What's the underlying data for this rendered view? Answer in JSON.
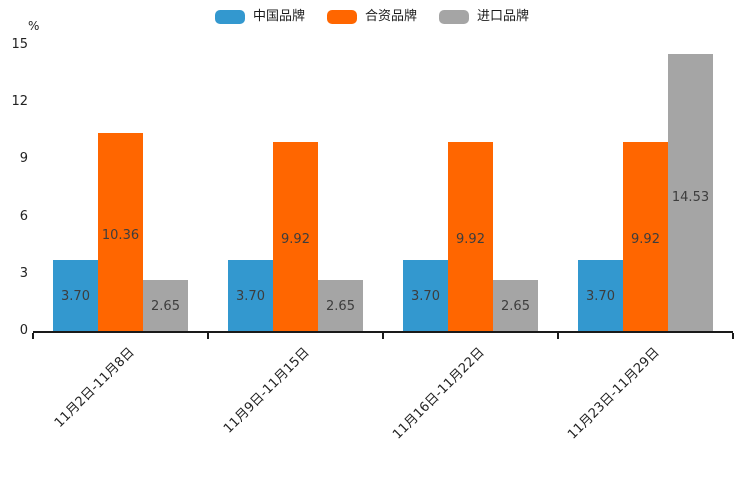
{
  "chart_data": {
    "type": "bar",
    "unit_label": "%",
    "categories": [
      "11月2日-11月8日",
      "11月9日-11月15日",
      "11月16日-11月22日",
      "11月23日-11月29日"
    ],
    "series": [
      {
        "name": "中国品牌",
        "color": "#3398CF",
        "values": [
          3.7,
          3.7,
          3.7,
          3.7
        ]
      },
      {
        "name": "合资品牌",
        "color": "#FF6600",
        "values": [
          10.36,
          9.92,
          9.92,
          9.92
        ]
      },
      {
        "name": "进口品牌",
        "color": "#A5A5A5",
        "values": [
          2.65,
          2.65,
          2.65,
          14.53
        ]
      }
    ],
    "value_label_decimals": 2,
    "ylim": [
      0,
      15
    ],
    "yticks": [
      0,
      3,
      6,
      9,
      12,
      15
    ],
    "legend_position": "top",
    "grid": false,
    "axis_color": "#1a1a1a"
  }
}
